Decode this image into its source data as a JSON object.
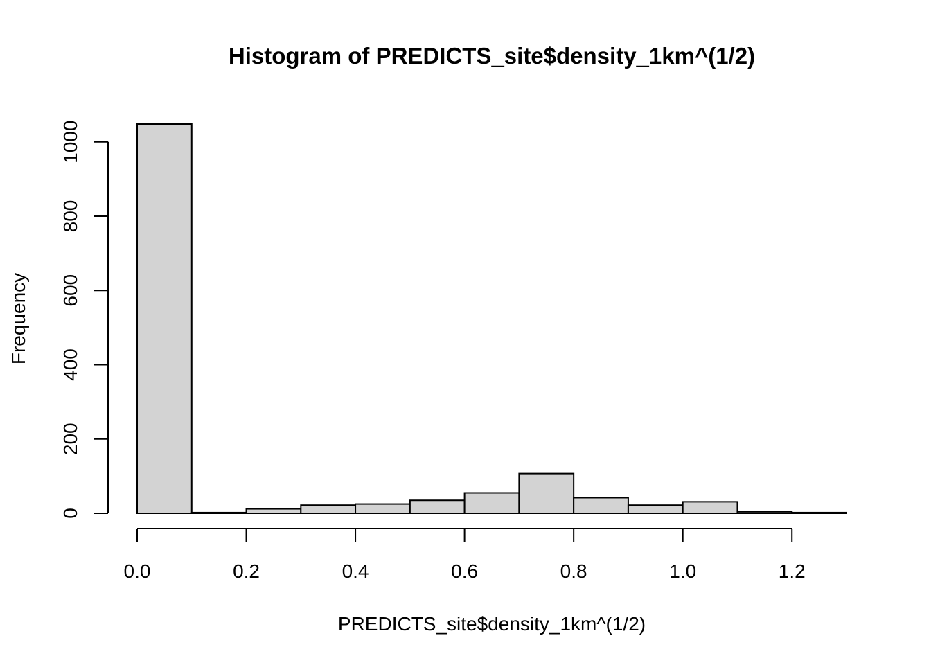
{
  "chart_data": {
    "type": "bar",
    "title": "Histogram of PREDICTS_site$density_1km^(1/2)",
    "xlabel": "PREDICTS_site$density_1km^(1/2)",
    "ylabel": "Frequency",
    "bin_edges": [
      0.0,
      0.1,
      0.2,
      0.3,
      0.4,
      0.5,
      0.6,
      0.7,
      0.8,
      0.9,
      1.0,
      1.1,
      1.2,
      1.3
    ],
    "values": [
      1048,
      2,
      12,
      22,
      25,
      35,
      55,
      107,
      42,
      22,
      31,
      4,
      2
    ],
    "xlim": [
      0.0,
      1.3
    ],
    "ylim": [
      0,
      1048
    ],
    "x_ticks": [
      0.0,
      0.2,
      0.4,
      0.6,
      0.8,
      1.0,
      1.2
    ],
    "x_tick_labels": [
      "0.0",
      "0.2",
      "0.4",
      "0.6",
      "0.8",
      "1.0",
      "1.2"
    ],
    "y_ticks": [
      0,
      200,
      400,
      600,
      800,
      1000
    ],
    "y_tick_labels": [
      "0",
      "200",
      "400",
      "600",
      "800",
      "1000"
    ],
    "bar_fill": "#d3d3d3",
    "bar_stroke": "#000000",
    "grid": false,
    "legend": "none"
  }
}
